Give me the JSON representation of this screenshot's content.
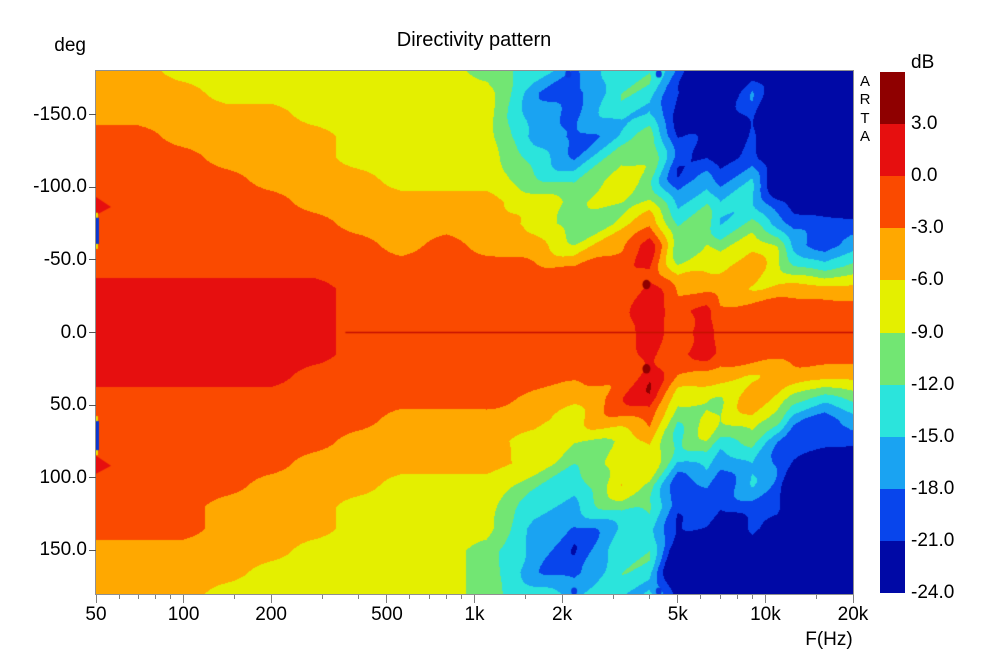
{
  "title": "Directivity pattern",
  "watermark": "ARTA",
  "axes": {
    "y": {
      "label": "deg",
      "tick_labels": [
        "-150.0",
        "-100.0",
        "-50.0",
        "0.0",
        "50.0",
        "100.0",
        "150.0"
      ],
      "tick_values": [
        -150,
        -100,
        -50,
        0,
        50,
        100,
        150
      ],
      "range_deg": [
        -180,
        180
      ]
    },
    "x": {
      "label": "F(Hz)",
      "tick_labels": [
        "50",
        "100",
        "200",
        "500",
        "1k",
        "2k",
        "5k",
        "10k",
        "20k"
      ],
      "tick_hz": [
        50,
        100,
        200,
        500,
        1000,
        2000,
        5000,
        10000,
        20000
      ],
      "minor_tick_hz": [
        60,
        70,
        80,
        90,
        150,
        300,
        400,
        600,
        700,
        800,
        900,
        1500,
        3000,
        4000,
        6000,
        7000,
        8000,
        9000,
        15000
      ],
      "range_hz": [
        50,
        20000
      ]
    }
  },
  "legend": {
    "title": "dB",
    "boundary_labels": [
      "3.0",
      "0.0",
      "-3.0",
      "-6.0",
      "-9.0",
      "-12.0",
      "-15.0",
      "-18.0",
      "-21.0",
      "-24.0"
    ]
  },
  "chart_data": {
    "type": "heatmap",
    "title": "Directivity pattern",
    "xlabel": "F(Hz)",
    "ylabel": "deg",
    "x_scale": "log",
    "freq_range_hz": [
      50,
      20000
    ],
    "angle_range_deg": [
      -180,
      180
    ],
    "grid_on": false,
    "legend_position": "right",
    "color_levels_db": [
      3,
      0,
      -3,
      -6,
      -9,
      -12,
      -15,
      -18,
      -21
    ],
    "band_colors_top_to_bottom": [
      "#8f0000",
      "#e60f0f",
      "#fa4a00",
      "#ffa800",
      "#e4ef00",
      "#72e673",
      "#2be4dc",
      "#1aa3f2",
      "#0845ec",
      "#0009a6"
    ],
    "grid": {
      "freqs_hz": [
        50,
        70,
        100,
        140,
        200,
        280,
        400,
        560,
        800,
        1100,
        1600,
        2200,
        3200,
        4000,
        5000,
        6300,
        7000,
        9000,
        11000,
        12500,
        16000,
        20000
      ],
      "angles_deg": [
        -180,
        -165,
        -150,
        -135,
        -120,
        -105,
        -90,
        -75,
        -60,
        -45,
        -30,
        -15,
        0,
        15,
        30,
        45,
        60,
        75,
        90,
        105,
        120,
        135,
        150,
        165,
        180
      ],
      "values_db": [
        [
          -4.5,
          -4.5,
          -4.5,
          -1.5,
          -1.5,
          -1.5,
          -1.5,
          -1.5,
          -1.5,
          -1.5,
          1.5,
          1.5,
          1.5,
          1.5,
          1.5,
          -1.5,
          -1.5,
          -1.5,
          -1.5,
          -1.5,
          -1.5,
          -1.5,
          -4.5,
          -4.5,
          -4.5
        ],
        [
          -4.5,
          -4.5,
          -4.5,
          -1.5,
          -1.5,
          -1.5,
          -1.5,
          -1.5,
          -1.5,
          -1.5,
          1.5,
          1.5,
          1.5,
          1.5,
          1.5,
          -1.5,
          -1.5,
          -1.5,
          -1.5,
          -1.5,
          -1.5,
          -1.5,
          -4.5,
          -4.5,
          -4.5
        ],
        [
          -7.5,
          -4.5,
          -4.5,
          -4.5,
          -1.5,
          -1.5,
          -1.5,
          -1.5,
          -1.5,
          -1.5,
          1.5,
          1.5,
          1.5,
          1.5,
          1.5,
          -1.5,
          -1.5,
          -1.5,
          -1.5,
          -1.5,
          -1.5,
          -1.5,
          -4.5,
          -4.5,
          -4.5
        ],
        [
          -7.5,
          -7.5,
          -4.5,
          -4.5,
          -4.5,
          -1.5,
          -1.5,
          -1.5,
          -1.5,
          -1.5,
          1.5,
          1.5,
          1.5,
          1.5,
          1.5,
          -1.5,
          -1.5,
          -1.5,
          -1.5,
          -1.5,
          -4.5,
          -4.5,
          -4.5,
          -4.5,
          -7.5
        ],
        [
          -7.5,
          -7.5,
          -4.5,
          -4.5,
          -4.5,
          -4.5,
          -1.5,
          -1.5,
          -1.5,
          -1.5,
          1.5,
          1.5,
          1.5,
          1.5,
          1.5,
          -1.5,
          -1.5,
          -1.5,
          -1.5,
          -4.5,
          -4.5,
          -4.5,
          -4.5,
          -7.5,
          -7.5
        ],
        [
          -7.5,
          -7.5,
          -7.5,
          -4.5,
          -4.5,
          -4.5,
          -4.5,
          -1.5,
          -1.5,
          -1.5,
          1.5,
          1.5,
          1.5,
          1.5,
          -1.5,
          -1.5,
          -1.5,
          -1.5,
          -4.5,
          -4.5,
          -4.5,
          -4.5,
          -7.5,
          -7.5,
          -7.5
        ],
        [
          -7.5,
          -7.5,
          -7.5,
          -7.5,
          -7.5,
          -4.5,
          -4.5,
          -4.5,
          -1.5,
          -1.5,
          -1.5,
          -1.5,
          -1.5,
          -1.5,
          -1.5,
          -1.5,
          -1.5,
          -4.5,
          -4.5,
          -4.5,
          -7.5,
          -7.5,
          -7.5,
          -7.5,
          -7.5
        ],
        [
          -7.5,
          -7.5,
          -7.5,
          -7.5,
          -7.5,
          -7.5,
          -4.5,
          -4.5,
          -4.5,
          -1.5,
          -1.5,
          -1.5,
          -1.5,
          -1.5,
          -1.5,
          -1.5,
          -4.5,
          -4.5,
          -4.5,
          -7.5,
          -7.5,
          -7.5,
          -7.5,
          -7.5,
          -7.5
        ],
        [
          -7.5,
          -7.5,
          -7.5,
          -7.5,
          -7.5,
          -7.5,
          -4.5,
          -4.5,
          -1.5,
          -1.5,
          -1.5,
          -1.5,
          -1.5,
          -1.5,
          -1.5,
          -1.5,
          -4.5,
          -4.5,
          -4.5,
          -7.5,
          -7.5,
          -7.5,
          -7.5,
          -7.5,
          -7.5
        ],
        [
          -10.5,
          -7.5,
          -7.5,
          -7.5,
          -7.5,
          -7.5,
          -4.5,
          -4.5,
          -4.5,
          -1.5,
          -1.5,
          -1.5,
          -1.5,
          -1.5,
          -1.5,
          -1.5,
          -4.5,
          -4.5,
          -4.5,
          -7.5,
          -7.5,
          -7.5,
          -10.5,
          -10.5,
          -10.5
        ],
        [
          -13.5,
          -16.5,
          -16.5,
          -16.5,
          -13.5,
          -10.5,
          -7.5,
          -7.5,
          -4.5,
          -1.5,
          -1.5,
          -1.5,
          -1.5,
          -1.5,
          -1.5,
          -4.5,
          -4.5,
          -7.5,
          -7.5,
          -10.5,
          -13.5,
          -16.5,
          -16.5,
          -16.5,
          -13.5
        ],
        [
          -16.5,
          -19.5,
          -19.5,
          -19.5,
          -16.5,
          -13.5,
          -10.5,
          -10.5,
          -7.5,
          -4.5,
          -1.5,
          -1.5,
          -1.5,
          -1.5,
          -1.5,
          -4.5,
          -7.5,
          -10.5,
          -10.5,
          -13.5,
          -16.5,
          -19.5,
          -19.5,
          -19.5,
          -16.5
        ],
        [
          -13.5,
          -13.5,
          -13.5,
          -13.5,
          -10.5,
          -7.5,
          -7.5,
          -7.5,
          -4.5,
          -1.5,
          -1.5,
          -1.5,
          -1.5,
          -1.5,
          -1.5,
          -1.5,
          -4.5,
          -7.5,
          -7.5,
          -7.5,
          -10.5,
          -13.5,
          -13.5,
          -13.5,
          -13.5
        ],
        [
          -13.5,
          -13.5,
          -13.5,
          -10.5,
          -10.5,
          -10.5,
          -7.5,
          -4.5,
          1.5,
          1.5,
          1.5,
          1.5,
          1.5,
          1.5,
          1.5,
          1.5,
          -1.5,
          -4.5,
          -7.5,
          -10.5,
          -10.5,
          -13.5,
          -13.5,
          -13.5,
          -13.5
        ],
        [
          -19.5,
          -19.5,
          -22.5,
          -22.5,
          -19.5,
          -19.5,
          -16.5,
          -13.5,
          -10.5,
          -7.5,
          -4.5,
          -1.5,
          -1.5,
          -1.5,
          -4.5,
          -7.5,
          -10.5,
          -13.5,
          -16.5,
          -19.5,
          -19.5,
          -22.5,
          -26,
          -26,
          -22.5
        ],
        [
          -26,
          -26,
          -26,
          -22.5,
          -19.5,
          -16.5,
          -13.5,
          -10.5,
          -7.5,
          -7.5,
          -4.5,
          1.5,
          1.5,
          1.5,
          -4.5,
          -7.5,
          -7.5,
          -10.5,
          -13.5,
          -16.5,
          -19.5,
          -22.5,
          -26,
          -26,
          -26
        ],
        [
          -26,
          -26,
          -26,
          -26,
          -22.5,
          -19.5,
          -16.5,
          -13.5,
          -10.5,
          -7.5,
          -4.5,
          -1.5,
          -1.5,
          -1.5,
          -4.5,
          -7.5,
          -10.5,
          -13.5,
          -16.5,
          -19.5,
          -22.5,
          -26,
          -26,
          -26,
          -26
        ],
        [
          -22.5,
          -19.5,
          -19.5,
          -19.5,
          -19.5,
          -16.5,
          -13.5,
          -10.5,
          -7.5,
          -4.5,
          -4.5,
          -1.5,
          -1.5,
          -1.5,
          -4.5,
          -4.5,
          -7.5,
          -10.5,
          -13.5,
          -16.5,
          -19.5,
          -19.5,
          -22.5,
          -26,
          -26
        ],
        [
          -26,
          -26,
          -26,
          -26,
          -26,
          -26,
          -19.5,
          -16.5,
          -10.5,
          -7.5,
          -4.5,
          -1.5,
          -1.5,
          -1.5,
          -4.5,
          -7.5,
          -10.5,
          -16.5,
          -19.5,
          -19.5,
          -19.5,
          -22.5,
          -26,
          -26,
          -26
        ],
        [
          -26,
          -26,
          -26,
          -26,
          -26,
          -26,
          -22.5,
          -19.5,
          -16.5,
          -10.5,
          -4.5,
          -1.5,
          -1.5,
          -1.5,
          -4.5,
          -10.5,
          -16.5,
          -19.5,
          -22.5,
          -26,
          -26,
          -26,
          -26,
          -26,
          -26
        ],
        [
          -26,
          -26,
          -26,
          -26,
          -26,
          -26,
          -26,
          -19.5,
          -19.5,
          -13.5,
          -5,
          -1.5,
          -1.5,
          -1.5,
          -5,
          -13.5,
          -19.5,
          -19.5,
          -26,
          -26,
          -26,
          -26,
          -26,
          -26,
          -26
        ],
        [
          -26,
          -26,
          -26,
          -26,
          -26,
          -26,
          -26,
          -19.5,
          -16.5,
          -11,
          -5,
          -1.5,
          -1.5,
          -1.5,
          -5,
          -11,
          -16.5,
          -19.5,
          -26,
          -26,
          -26,
          -26,
          -26,
          -26,
          -26
        ]
      ]
    },
    "axis_line_deg0": {
      "from_hz": 360,
      "to_hz": 20000,
      "deg": 0,
      "color": "#c41000"
    },
    "markers": [
      {
        "type": "dot",
        "hz": 3900,
        "deg": -33,
        "r": 4,
        "color": "#8f0000"
      },
      {
        "type": "dot",
        "hz": 3900,
        "deg": 25,
        "r": 4,
        "color": "#8f0000"
      },
      {
        "type": "dot",
        "hz": 2100,
        "deg": -178,
        "r": 3,
        "color": "#0a38dd"
      },
      {
        "type": "dot",
        "hz": 4300,
        "deg": -178,
        "r": 3,
        "color": "#0a38dd"
      },
      {
        "type": "dot",
        "hz": 2200,
        "deg": 178,
        "r": 3,
        "color": "#0a38dd"
      },
      {
        "type": "dot",
        "hz": 4300,
        "deg": 178,
        "r": 3,
        "color": "#0a38dd"
      },
      {
        "type": "triangle",
        "hz": 50,
        "deg": -87,
        "color": "#e60f0f"
      },
      {
        "type": "triangle",
        "hz": 50,
        "deg": 91,
        "color": "#e60f0f"
      },
      {
        "type": "bar",
        "hz": 50,
        "deg_from": -79,
        "deg_to": -61,
        "color": "#0b36cf"
      },
      {
        "type": "bar",
        "hz": 50,
        "deg_from": 61,
        "deg_to": 81,
        "color": "#0b36cf"
      }
    ]
  }
}
